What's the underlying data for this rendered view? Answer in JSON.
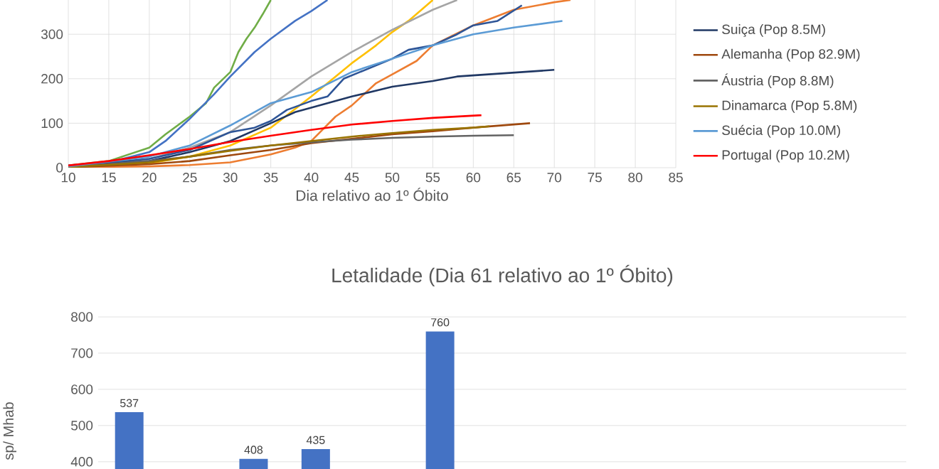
{
  "chart_data": [
    {
      "type": "line",
      "xlabel": "Dia relativo ao 1º Óbito",
      "xlim": [
        10,
        85
      ],
      "ylim": [
        0,
        377
      ],
      "xticks": [
        10,
        15,
        20,
        25,
        30,
        35,
        40,
        45,
        50,
        55,
        60,
        65,
        70,
        75,
        80,
        85
      ],
      "yticks": [
        0,
        100,
        200,
        300
      ],
      "grid": true,
      "legend": "right",
      "marker": "none",
      "line_style": "solid",
      "series": [
        {
          "color": "#70ad47",
          "x": [
            10,
            15,
            20,
            22,
            25,
            27,
            28,
            30,
            31,
            32,
            33,
            34,
            35
          ],
          "values": [
            5,
            15,
            45,
            75,
            115,
            145,
            180,
            215,
            260,
            290,
            315,
            345,
            377
          ]
        },
        {
          "color": "#4472c4",
          "x": [
            10,
            15,
            20,
            22,
            25,
            28,
            30,
            33,
            35,
            38,
            40,
            42
          ],
          "values": [
            5,
            12,
            35,
            60,
            110,
            165,
            205,
            260,
            290,
            330,
            352,
            377
          ]
        },
        {
          "color": "#ffc000",
          "x": [
            10,
            20,
            25,
            30,
            35,
            40,
            43,
            45,
            48,
            50,
            52,
            55
          ],
          "values": [
            2,
            10,
            25,
            50,
            90,
            160,
            205,
            235,
            275,
            305,
            330,
            377
          ]
        },
        {
          "color": "#a5a5a5",
          "x": [
            10,
            20,
            25,
            30,
            35,
            40,
            45,
            50,
            55,
            58
          ],
          "values": [
            3,
            20,
            45,
            80,
            140,
            205,
            260,
            310,
            355,
            377
          ]
        },
        {
          "color": "#ed7d31",
          "x": [
            10,
            20,
            25,
            30,
            35,
            38,
            40,
            43,
            45,
            48,
            50,
            53,
            55,
            60,
            65,
            70,
            72
          ],
          "values": [
            1,
            3,
            6,
            12,
            30,
            45,
            60,
            115,
            140,
            190,
            210,
            240,
            275,
            320,
            355,
            372,
            377
          ]
        },
        {
          "color": "#2e5597",
          "x": [
            10,
            20,
            25,
            30,
            33,
            35,
            37,
            40,
            42,
            44,
            46,
            50,
            52,
            55,
            58,
            60,
            63,
            66
          ],
          "values": [
            2,
            20,
            40,
            80,
            90,
            105,
            130,
            150,
            160,
            200,
            215,
            245,
            265,
            275,
            300,
            320,
            330,
            365
          ]
        },
        {
          "name": "Suiça (Pop 8.5M)",
          "color": "#203864",
          "x": [
            10,
            20,
            25,
            30,
            35,
            38,
            40,
            45,
            50,
            55,
            58,
            62,
            66,
            70
          ],
          "values": [
            2,
            15,
            35,
            60,
            100,
            125,
            135,
            160,
            182,
            195,
            205,
            210,
            215,
            220
          ]
        },
        {
          "name": "Alemanha (Pop 82.9M)",
          "color": "#9e480e",
          "x": [
            10,
            20,
            25,
            30,
            35,
            40,
            45,
            50,
            55,
            60,
            67
          ],
          "values": [
            1,
            8,
            15,
            28,
            40,
            55,
            65,
            75,
            82,
            90,
            100
          ]
        },
        {
          "name": "Áustria (Pop 8.8M)",
          "color": "#636363",
          "x": [
            10,
            20,
            25,
            30,
            35,
            40,
            45,
            50,
            55,
            60,
            65
          ],
          "values": [
            2,
            15,
            25,
            40,
            50,
            57,
            63,
            67,
            70,
            72,
            73
          ]
        },
        {
          "name": "Dinamarca (Pop 5.8M)",
          "color": "#997300",
          "x": [
            10,
            20,
            25,
            30,
            35,
            40,
            45,
            50,
            55,
            60,
            62
          ],
          "values": [
            1,
            12,
            25,
            38,
            50,
            60,
            70,
            78,
            85,
            90,
            93
          ]
        },
        {
          "name": "Suécia (Pop 10.0M)",
          "color": "#5b9bd5",
          "x": [
            10,
            20,
            25,
            30,
            35,
            40,
            45,
            50,
            55,
            60,
            65,
            71
          ],
          "values": [
            3,
            25,
            50,
            95,
            145,
            170,
            215,
            245,
            275,
            300,
            315,
            330
          ]
        },
        {
          "name": "Portugal (Pop 10.2M)",
          "color": "#ff0000",
          "x": [
            10,
            15,
            20,
            25,
            30,
            35,
            40,
            45,
            50,
            55,
            61
          ],
          "values": [
            5,
            15,
            28,
            42,
            58,
            72,
            85,
            97,
            105,
            112,
            118
          ]
        }
      ]
    },
    {
      "type": "bar",
      "title": "Letalidade (Dia 61 relativo ao 1º Óbito)",
      "ylabel": "sp/ Mhab",
      "categories": [
        null,
        null,
        null,
        null,
        null,
        null,
        null,
        null,
        null,
        null,
        null,
        null,
        null
      ],
      "values": [
        537,
        null,
        408,
        435,
        null,
        760,
        null,
        null,
        null,
        null,
        null,
        null,
        null
      ],
      "color": "#4472c4",
      "ylim": [
        380,
        800
      ],
      "yticks": [
        400,
        500,
        600,
        700,
        800
      ],
      "grid": "y",
      "data_labels": true
    }
  ]
}
